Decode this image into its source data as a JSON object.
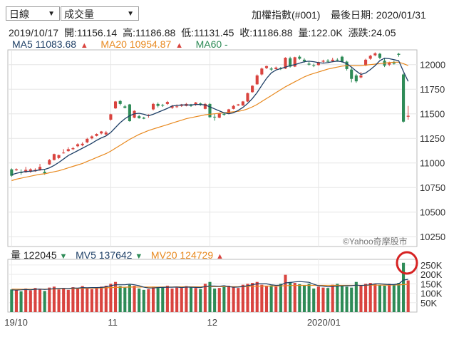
{
  "controls": {
    "period_select": "日線",
    "indicator_select": "成交量",
    "dropdown_arrow": "▼"
  },
  "header": {
    "index_name": "加權指數(#001)",
    "last_date": "最後日期: 2020/01/31"
  },
  "ohlc": {
    "date": "2019/10/17",
    "open": "開:11156.14",
    "high": "高:11186.88",
    "low": "低:11131.45",
    "close": "收:11186.88",
    "volume": "量:122.0K",
    "change": "漲跌:24.05"
  },
  "ma_legend": {
    "ma5": "MA5 11083.68",
    "ma20": "MA20 10954.87",
    "ma60": "MA60 -",
    "up_mark": "▲"
  },
  "volume_legend": {
    "vol": "量 122045",
    "mv5": "MV5 137642",
    "mv20": "MV20 124729",
    "down_mark": "▼",
    "up_mark": "▲"
  },
  "watermark": "©Yahoo奇摩股市",
  "colors": {
    "up": "#d9443f",
    "down": "#2e8b57",
    "ma5": "#1e3f66",
    "ma20": "#e8891f",
    "ma60": "#2c8a55",
    "highlight_circle": "#d62222"
  },
  "chart_data": {
    "type": "candlestick",
    "price_axis": {
      "ylim": [
        10150,
        12150
      ],
      "ticks": [
        10250,
        10500,
        10750,
        11000,
        11250,
        11500,
        11750,
        12000
      ]
    },
    "volume_axis": {
      "ylim": [
        0,
        280
      ],
      "unit": "K",
      "ticks": [
        "50K",
        "100K",
        "150K",
        "200K",
        "250K"
      ],
      "tick_values": [
        50,
        100,
        150,
        200,
        250
      ]
    },
    "x_labels": [
      "19/10",
      "11",
      "12",
      "2020/01"
    ],
    "x_label_index": [
      0,
      21,
      42,
      65
    ],
    "candles": [
      {
        "o": 10935,
        "c": 10870,
        "h": 10945,
        "l": 10860
      },
      {
        "o": 10925,
        "c": 10935,
        "h": 10945,
        "l": 10920
      },
      {
        "o": 10905,
        "c": 10900,
        "h": 10935,
        "l": 10880
      },
      {
        "o": 10905,
        "c": 10930,
        "h": 10960,
        "l": 10900
      },
      {
        "o": 10910,
        "c": 10935,
        "h": 10945,
        "l": 10900
      },
      {
        "o": 10915,
        "c": 10930,
        "h": 10945,
        "l": 10910
      },
      {
        "o": 10925,
        "c": 10960,
        "h": 10990,
        "l": 10920
      },
      {
        "o": 10910,
        "c": 10895,
        "h": 10930,
        "l": 10880
      },
      {
        "o": 10985,
        "c": 11030,
        "h": 11040,
        "l": 10980
      },
      {
        "o": 11030,
        "c": 11090,
        "h": 11095,
        "l": 11025
      },
      {
        "o": 11050,
        "c": 11080,
        "h": 11085,
        "l": 11040
      },
      {
        "o": 11100,
        "c": 11105,
        "h": 11140,
        "l": 11095
      },
      {
        "o": 11120,
        "c": 11140,
        "h": 11160,
        "l": 11115
      },
      {
        "o": 11140,
        "c": 11150,
        "h": 11165,
        "l": 11130
      },
      {
        "o": 11170,
        "c": 11190,
        "h": 11200,
        "l": 11160
      },
      {
        "o": 11180,
        "c": 11195,
        "h": 11210,
        "l": 11170
      },
      {
        "o": 11210,
        "c": 11245,
        "h": 11255,
        "l": 11200
      },
      {
        "o": 11250,
        "c": 11270,
        "h": 11280,
        "l": 11240
      },
      {
        "o": 11275,
        "c": 11295,
        "h": 11300,
        "l": 11270
      },
      {
        "o": 11300,
        "c": 11320,
        "h": 11325,
        "l": 11290
      },
      {
        "o": 11290,
        "c": 11310,
        "h": 11325,
        "l": 11280
      },
      {
        "o": 11440,
        "c": 11495,
        "h": 11500,
        "l": 11430
      },
      {
        "o": 11555,
        "c": 11625,
        "h": 11630,
        "l": 11550
      },
      {
        "o": 11630,
        "c": 11600,
        "h": 11640,
        "l": 11585
      },
      {
        "o": 11575,
        "c": 11560,
        "h": 11590,
        "l": 11555
      },
      {
        "o": 11595,
        "c": 11425,
        "h": 11600,
        "l": 11420
      },
      {
        "o": 11460,
        "c": 11530,
        "h": 11535,
        "l": 11455
      },
      {
        "o": 11475,
        "c": 11455,
        "h": 11490,
        "l": 11450
      },
      {
        "o": 11460,
        "c": 11450,
        "h": 11470,
        "l": 11445
      },
      {
        "o": 11480,
        "c": 11490,
        "h": 11495,
        "l": 11460
      },
      {
        "o": 11545,
        "c": 11600,
        "h": 11610,
        "l": 11535
      },
      {
        "o": 11600,
        "c": 11580,
        "h": 11615,
        "l": 11565
      },
      {
        "o": 11590,
        "c": 11585,
        "h": 11600,
        "l": 11570
      },
      {
        "o": 11600,
        "c": 11620,
        "h": 11630,
        "l": 11590
      },
      {
        "o": 11560,
        "c": 11580,
        "h": 11590,
        "l": 11550
      },
      {
        "o": 11570,
        "c": 11575,
        "h": 11595,
        "l": 11560
      },
      {
        "o": 11580,
        "c": 11595,
        "h": 11600,
        "l": 11570
      },
      {
        "o": 11580,
        "c": 11600,
        "h": 11610,
        "l": 11575
      },
      {
        "o": 11595,
        "c": 11580,
        "h": 11600,
        "l": 11570
      },
      {
        "o": 11595,
        "c": 11615,
        "h": 11620,
        "l": 11580
      },
      {
        "o": 11605,
        "c": 11590,
        "h": 11615,
        "l": 11580
      },
      {
        "o": 11550,
        "c": 11600,
        "h": 11610,
        "l": 11545
      },
      {
        "o": 11600,
        "c": 11465,
        "h": 11610,
        "l": 11460
      },
      {
        "o": 11470,
        "c": 11465,
        "h": 11500,
        "l": 11430
      },
      {
        "o": 11460,
        "c": 11505,
        "h": 11510,
        "l": 11455
      },
      {
        "o": 11500,
        "c": 11490,
        "h": 11510,
        "l": 11480
      },
      {
        "o": 11505,
        "c": 11545,
        "h": 11550,
        "l": 11500
      },
      {
        "o": 11550,
        "c": 11580,
        "h": 11590,
        "l": 11545
      },
      {
        "o": 11585,
        "c": 11595,
        "h": 11600,
        "l": 11580
      },
      {
        "o": 11585,
        "c": 11625,
        "h": 11630,
        "l": 11580
      },
      {
        "o": 11625,
        "c": 11710,
        "h": 11715,
        "l": 11620
      },
      {
        "o": 11720,
        "c": 11785,
        "h": 11790,
        "l": 11715
      },
      {
        "o": 11800,
        "c": 11890,
        "h": 11900,
        "l": 11795
      },
      {
        "o": 11900,
        "c": 11960,
        "h": 11970,
        "l": 11890
      },
      {
        "o": 11965,
        "c": 11985,
        "h": 11990,
        "l": 11955
      },
      {
        "o": 11960,
        "c": 11950,
        "h": 11975,
        "l": 11935
      },
      {
        "o": 11955,
        "c": 11970,
        "h": 11980,
        "l": 11950
      },
      {
        "o": 11965,
        "c": 11955,
        "h": 11975,
        "l": 11945
      },
      {
        "o": 11960,
        "c": 12070,
        "h": 12075,
        "l": 11955
      },
      {
        "o": 12065,
        "c": 11980,
        "h": 12080,
        "l": 11970
      },
      {
        "o": 11980,
        "c": 12075,
        "h": 12080,
        "l": 11975
      },
      {
        "o": 12080,
        "c": 12060,
        "h": 12095,
        "l": 12050
      },
      {
        "o": 12050,
        "c": 12035,
        "h": 12065,
        "l": 12020
      },
      {
        "o": 12010,
        "c": 12000,
        "h": 12030,
        "l": 11990
      },
      {
        "o": 11995,
        "c": 11990,
        "h": 12010,
        "l": 11975
      },
      {
        "o": 11995,
        "c": 12025,
        "h": 12030,
        "l": 11990
      },
      {
        "o": 12030,
        "c": 12040,
        "h": 12050,
        "l": 12020
      },
      {
        "o": 12040,
        "c": 12030,
        "h": 12055,
        "l": 12025
      },
      {
        "o": 12035,
        "c": 12050,
        "h": 12070,
        "l": 12025
      },
      {
        "o": 12050,
        "c": 12045,
        "h": 12065,
        "l": 12035
      },
      {
        "o": 12080,
        "c": 12030,
        "h": 12090,
        "l": 12020
      },
      {
        "o": 12030,
        "c": 11955,
        "h": 12040,
        "l": 11940
      },
      {
        "o": 11950,
        "c": 11855,
        "h": 11970,
        "l": 11820
      },
      {
        "o": 11890,
        "c": 11830,
        "h": 11905,
        "l": 11815
      },
      {
        "o": 11870,
        "c": 11890,
        "h": 11925,
        "l": 11860
      },
      {
        "o": 11990,
        "c": 12050,
        "h": 12060,
        "l": 11985
      },
      {
        "o": 12060,
        "c": 12090,
        "h": 12100,
        "l": 12050
      },
      {
        "o": 12095,
        "c": 12115,
        "h": 12125,
        "l": 12085
      },
      {
        "o": 12110,
        "c": 12070,
        "h": 12120,
        "l": 12055
      },
      {
        "o": 12040,
        "c": 11990,
        "h": 12060,
        "l": 11975
      },
      {
        "o": 12000,
        "c": 12020,
        "h": 12030,
        "l": 11985
      },
      {
        "o": 12025,
        "c": 12010,
        "h": 12040,
        "l": 12000
      },
      {
        "o": 12110,
        "c": 12100,
        "h": 12120,
        "l": 12080
      },
      {
        "o": 11900,
        "c": 11420,
        "h": 11910,
        "l": 11410
      },
      {
        "o": 11470,
        "c": 11480,
        "h": 11580,
        "l": 11440
      }
    ],
    "ma5": [
      10880,
      10895,
      10905,
      10912,
      10915,
      10920,
      10930,
      10935,
      10950,
      10975,
      11005,
      11040,
      11075,
      11100,
      11125,
      11150,
      11175,
      11200,
      11230,
      11255,
      11275,
      11310,
      11360,
      11410,
      11450,
      11480,
      11500,
      11505,
      11495,
      11480,
      11495,
      11515,
      11535,
      11555,
      11580,
      11585,
      11590,
      11590,
      11590,
      11595,
      11595,
      11590,
      11570,
      11550,
      11530,
      11510,
      11500,
      11510,
      11535,
      11565,
      11605,
      11655,
      11715,
      11790,
      11860,
      11915,
      11945,
      11960,
      11975,
      11990,
      12000,
      12015,
      12030,
      12035,
      12030,
      12020,
      12015,
      12020,
      12030,
      12035,
      12030,
      12010,
      11975,
      11935,
      11900,
      11915,
      11950,
      11990,
      12040,
      12065,
      12060,
      12050,
      12040,
      11930,
      11830
    ],
    "ma20": [
      10820,
      10835,
      10845,
      10855,
      10865,
      10875,
      10885,
      10890,
      10900,
      10910,
      10920,
      10935,
      10950,
      10965,
      10980,
      10995,
      11015,
      11035,
      11055,
      11075,
      11095,
      11120,
      11150,
      11180,
      11210,
      11240,
      11265,
      11290,
      11310,
      11330,
      11345,
      11360,
      11375,
      11390,
      11405,
      11420,
      11435,
      11450,
      11460,
      11470,
      11480,
      11490,
      11495,
      11500,
      11505,
      11510,
      11515,
      11520,
      11525,
      11535,
      11550,
      11570,
      11595,
      11625,
      11655,
      11685,
      11715,
      11745,
      11775,
      11800,
      11825,
      11850,
      11875,
      11895,
      11910,
      11925,
      11940,
      11955,
      11965,
      11975,
      11985,
      11990,
      11990,
      11990,
      11990,
      11995,
      12000,
      12005,
      12010,
      12015,
      12020,
      12025,
      12025,
      12010,
      11990
    ],
    "ma60": [
      null,
      null,
      null,
      null,
      null,
      null,
      null,
      null,
      null,
      null,
      null,
      null,
      null,
      null,
      null,
      null,
      null,
      null,
      null,
      null,
      null,
      null,
      null,
      null,
      null,
      null,
      null,
      null,
      null,
      null,
      null,
      null,
      null,
      null,
      null,
      null,
      null,
      null,
      null,
      null,
      null,
      null,
      null,
      null,
      null,
      null,
      null,
      null,
      null,
      null,
      null,
      null,
      null,
      null,
      null,
      null,
      null,
      null,
      null,
      null,
      null,
      null,
      null,
      null,
      null,
      null,
      null,
      null,
      null,
      null,
      null,
      null,
      null,
      null,
      null,
      null,
      null,
      null,
      null,
      null,
      null,
      null,
      null,
      null,
      null
    ],
    "volume": [
      120,
      118,
      110,
      125,
      115,
      128,
      122,
      112,
      130,
      135,
      120,
      128,
      118,
      132,
      125,
      138,
      130,
      122,
      128,
      135,
      140,
      150,
      160,
      138,
      130,
      145,
      140,
      125,
      118,
      122,
      135,
      128,
      132,
      140,
      125,
      130,
      128,
      138,
      132,
      128,
      122,
      150,
      160,
      125,
      128,
      135,
      140,
      132,
      128,
      145,
      150,
      155,
      160,
      145,
      138,
      142,
      135,
      150,
      198,
      160,
      155,
      148,
      140,
      150,
      125,
      135,
      130,
      128,
      145,
      150,
      140,
      135,
      130,
      160,
      140,
      150,
      155,
      150,
      145,
      140,
      150,
      145,
      155,
      262,
      168
    ],
    "mv5": [
      118,
      117,
      118,
      120,
      118,
      121,
      122,
      120,
      122,
      124,
      125,
      126,
      125,
      128,
      127,
      130,
      129,
      130,
      130,
      131,
      134,
      140,
      145,
      145,
      145,
      148,
      145,
      140,
      132,
      128,
      128,
      130,
      131,
      132,
      132,
      133,
      130,
      133,
      132,
      131,
      130,
      135,
      138,
      138,
      137,
      140,
      135,
      132,
      133,
      136,
      140,
      145,
      150,
      150,
      150,
      145,
      142,
      143,
      155,
      157,
      160,
      162,
      160,
      158,
      148,
      140,
      138,
      134,
      136,
      138,
      139,
      140,
      140,
      143,
      141,
      143,
      145,
      150,
      150,
      148,
      146,
      146,
      150,
      170,
      174
    ],
    "mv20": [
      122,
      122,
      121,
      121,
      121,
      121,
      122,
      122,
      122,
      123,
      123,
      124,
      124,
      125,
      125,
      126,
      126,
      127,
      127,
      128,
      129,
      130,
      131,
      132,
      132,
      133,
      133,
      133,
      133,
      133,
      133,
      133,
      133,
      133,
      133,
      134,
      134,
      134,
      134,
      134,
      134,
      135,
      135,
      135,
      135,
      135,
      135,
      135,
      135,
      136,
      136,
      137,
      137,
      138,
      138,
      138,
      138,
      139,
      140,
      141,
      141,
      142,
      142,
      142,
      142,
      142,
      142,
      142,
      142,
      142,
      142,
      142,
      142,
      142,
      142,
      142,
      143,
      143,
      143,
      143,
      143,
      144,
      144,
      146,
      147
    ]
  }
}
